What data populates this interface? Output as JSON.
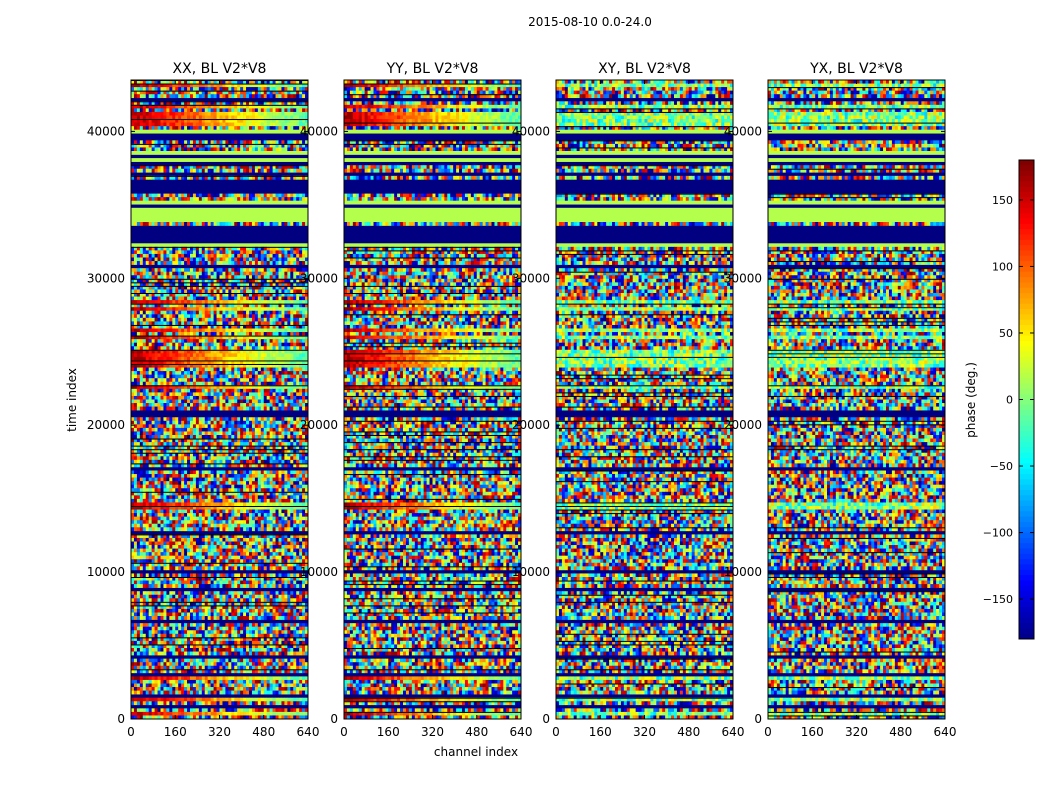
{
  "chart_data": {
    "type": "heatmap",
    "suptitle": "2015-08-10 0.0-24.0",
    "xlabel": "channel index",
    "ylabel": "time index",
    "xlim": [
      0,
      640
    ],
    "ylim": [
      0,
      43500
    ],
    "xticks": [
      0,
      160,
      320,
      480,
      640
    ],
    "yticks": [
      0,
      10000,
      20000,
      30000,
      40000
    ],
    "panels": [
      {
        "title": "XX, BL V2*V8",
        "polarization": "XX"
      },
      {
        "title": "YY, BL V2*V8",
        "polarization": "YY"
      },
      {
        "title": "XY, BL V2*V8",
        "polarization": "XY"
      },
      {
        "title": "YX, BL V2*V8",
        "polarization": "YX"
      }
    ],
    "colorbar": {
      "label": "phase (deg.)",
      "range": [
        -180,
        180
      ],
      "ticks": [
        -150,
        -100,
        -50,
        0,
        50,
        100,
        150
      ],
      "colormap": "jet"
    }
  },
  "colors": {
    "masked": "#000080",
    "background": "#ffffff"
  }
}
